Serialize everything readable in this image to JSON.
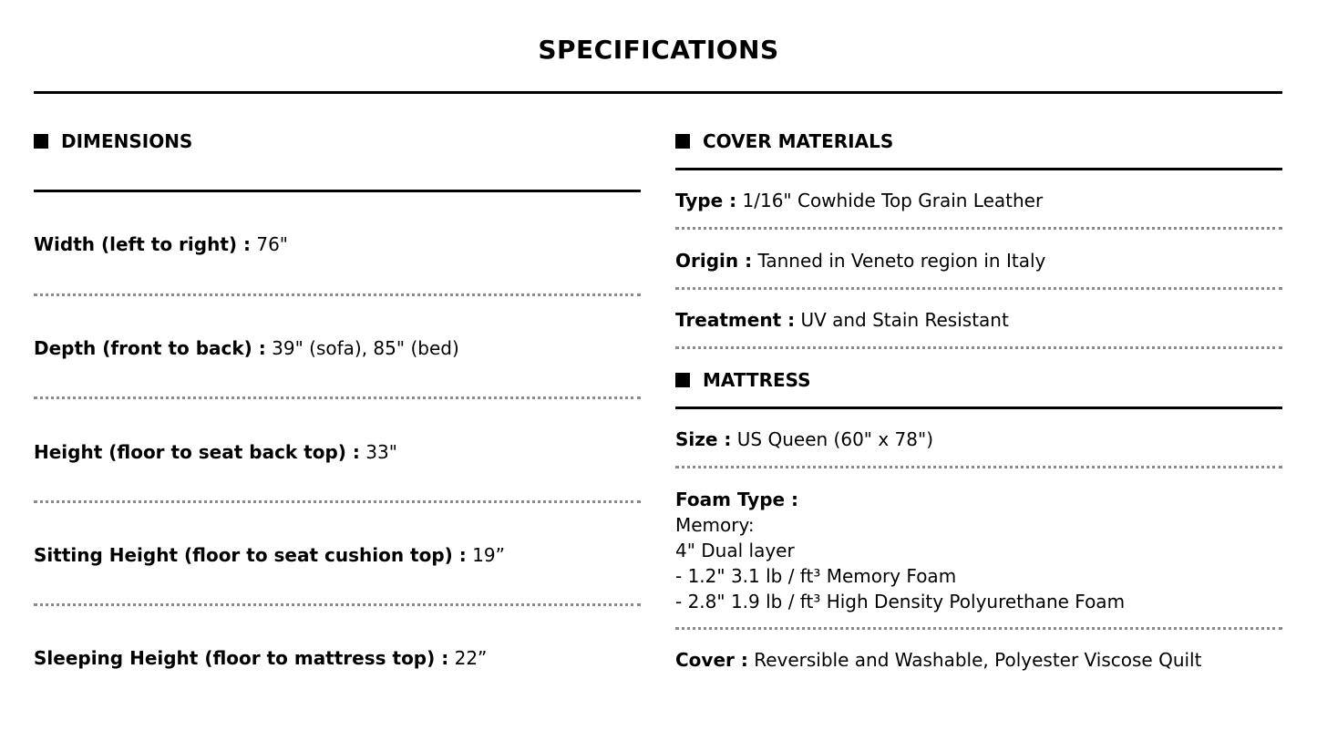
{
  "title": "SPECIFICATIONS",
  "dimensions": {
    "heading": "DIMENSIONS",
    "rows": [
      {
        "label": "Width (left to right) :",
        "value": " 76\""
      },
      {
        "label": "Depth (front to back) :",
        "value": " 39\" (sofa), 85\" (bed)"
      },
      {
        "label": "Height (floor to seat back top) :",
        "value": " 33\""
      },
      {
        "label": "Sitting Height (floor to seat cushion top) :",
        "value": " 19”"
      },
      {
        "label": "Sleeping Height (floor to mattress top) :",
        "value": " 22”"
      }
    ]
  },
  "cover_materials": {
    "heading": "COVER MATERIALS",
    "rows": [
      {
        "label": "Type :",
        "value": " 1/16\" Cowhide Top Grain Leather"
      },
      {
        "label": "Origin :",
        "value": " Tanned in Veneto region in Italy"
      },
      {
        "label": "Treatment :",
        "value": " UV and Stain Resistant"
      }
    ]
  },
  "mattress": {
    "heading": "MATTRESS",
    "size": {
      "label": "Size :",
      "value": " US Queen (60\" x 78\")"
    },
    "foam": {
      "label": "Foam Type :",
      "lines": [
        "Memory:",
        "4\" Dual layer",
        "- 1.2\" 3.1 lb / ft³ Memory Foam",
        "- 2.8\" 1.9 lb / ft³ High Density Polyurethane Foam"
      ]
    },
    "cover": {
      "label": "Cover :",
      "value": " Reversible and Washable, Polyester Viscose Quilt"
    }
  }
}
